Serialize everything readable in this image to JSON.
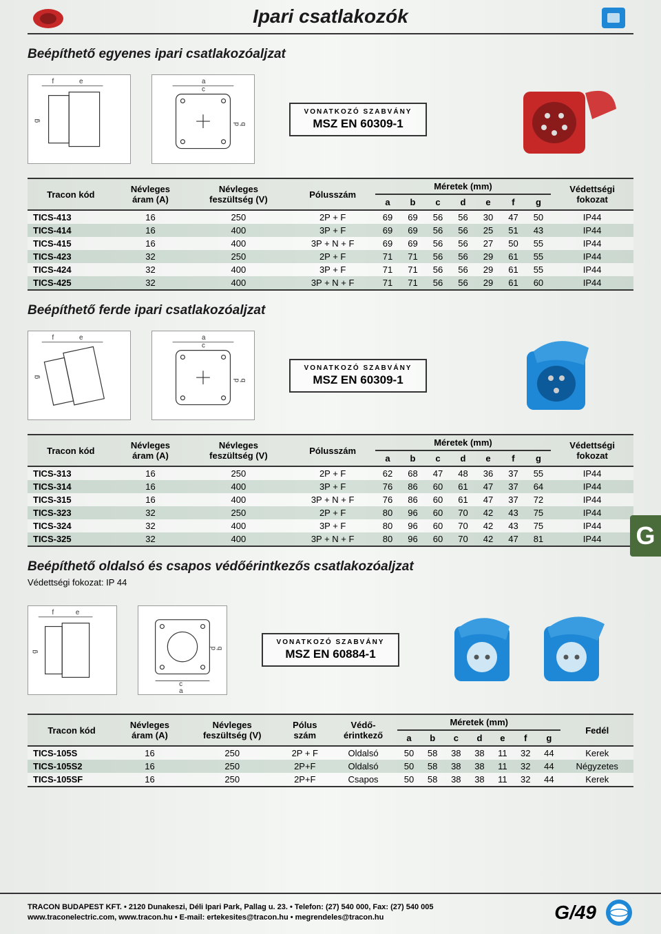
{
  "page_title": "Ipari csatlakozók",
  "standard_label": "VONATKOZÓ SZABVÁNY",
  "side_tab": "G",
  "footer": {
    "line1": "TRACON BUDAPEST KFT. • 2120 Dunakeszi, Déli Ipari Park, Pallag u. 23. • Telefon: (27) 540 000, Fax: (27) 540 005",
    "line2": "www.traconelectric.com, www.tracon.hu • E-mail: ertekesites@tracon.hu • megrendeles@tracon.hu",
    "page": "G/49"
  },
  "colors": {
    "accent": "#4a6b3a",
    "red": "#c62828",
    "blue": "#1e88d6",
    "row_stripe": "rgba(150,180,160,0.35)"
  },
  "section1": {
    "title": "Beépíthető egyenes ipari csatlakozóaljzat",
    "standard": "MSZ EN 60309-1",
    "product_color": "#c62828",
    "headers": {
      "code": "Tracon kód",
      "current_l1": "Névleges",
      "current_l2": "áram (A)",
      "voltage_l1": "Névleges",
      "voltage_l2": "feszültség (V)",
      "poles": "Pólusszám",
      "dims": "Méretek (mm)",
      "dim_cols": [
        "a",
        "b",
        "c",
        "d",
        "e",
        "f",
        "g"
      ],
      "ip_l1": "Védettségi",
      "ip_l2": "fokozat"
    },
    "rows": [
      {
        "code": "TICS-413",
        "cur": "16",
        "volt": "250",
        "pole": "2P + F",
        "a": "69",
        "b": "69",
        "c": "56",
        "d": "56",
        "e": "30",
        "f": "47",
        "g": "50",
        "ip": "IP44"
      },
      {
        "code": "TICS-414",
        "cur": "16",
        "volt": "400",
        "pole": "3P + F",
        "a": "69",
        "b": "69",
        "c": "56",
        "d": "56",
        "e": "25",
        "f": "51",
        "g": "43",
        "ip": "IP44"
      },
      {
        "code": "TICS-415",
        "cur": "16",
        "volt": "400",
        "pole": "3P + N + F",
        "a": "69",
        "b": "69",
        "c": "56",
        "d": "56",
        "e": "27",
        "f": "50",
        "g": "55",
        "ip": "IP44"
      },
      {
        "code": "TICS-423",
        "cur": "32",
        "volt": "250",
        "pole": "2P + F",
        "a": "71",
        "b": "71",
        "c": "56",
        "d": "56",
        "e": "29",
        "f": "61",
        "g": "55",
        "ip": "IP44"
      },
      {
        "code": "TICS-424",
        "cur": "32",
        "volt": "400",
        "pole": "3P + F",
        "a": "71",
        "b": "71",
        "c": "56",
        "d": "56",
        "e": "29",
        "f": "61",
        "g": "55",
        "ip": "IP44"
      },
      {
        "code": "TICS-425",
        "cur": "32",
        "volt": "400",
        "pole": "3P + N + F",
        "a": "71",
        "b": "71",
        "c": "56",
        "d": "56",
        "e": "29",
        "f": "61",
        "g": "60",
        "ip": "IP44"
      }
    ]
  },
  "section2": {
    "title": "Beépíthető ferde ipari csatlakozóaljzat",
    "standard": "MSZ EN 60309-1",
    "product_color": "#1e88d6",
    "headers": {
      "code": "Tracon kód",
      "current_l1": "Névleges",
      "current_l2": "áram (A)",
      "voltage_l1": "Névleges",
      "voltage_l2": "feszültség (V)",
      "poles": "Pólusszám",
      "dims": "Méretek (mm)",
      "dim_cols": [
        "a",
        "b",
        "c",
        "d",
        "e",
        "f",
        "g"
      ],
      "ip_l1": "Védettségi",
      "ip_l2": "fokozat"
    },
    "rows": [
      {
        "code": "TICS-313",
        "cur": "16",
        "volt": "250",
        "pole": "2P + F",
        "a": "62",
        "b": "68",
        "c": "47",
        "d": "48",
        "e": "36",
        "f": "37",
        "g": "55",
        "ip": "IP44"
      },
      {
        "code": "TICS-314",
        "cur": "16",
        "volt": "400",
        "pole": "3P + F",
        "a": "76",
        "b": "86",
        "c": "60",
        "d": "61",
        "e": "47",
        "f": "37",
        "g": "64",
        "ip": "IP44"
      },
      {
        "code": "TICS-315",
        "cur": "16",
        "volt": "400",
        "pole": "3P + N + F",
        "a": "76",
        "b": "86",
        "c": "60",
        "d": "61",
        "e": "47",
        "f": "37",
        "g": "72",
        "ip": "IP44"
      },
      {
        "code": "TICS-323",
        "cur": "32",
        "volt": "250",
        "pole": "2P + F",
        "a": "80",
        "b": "96",
        "c": "60",
        "d": "70",
        "e": "42",
        "f": "43",
        "g": "75",
        "ip": "IP44"
      },
      {
        "code": "TICS-324",
        "cur": "32",
        "volt": "400",
        "pole": "3P + F",
        "a": "80",
        "b": "96",
        "c": "60",
        "d": "70",
        "e": "42",
        "f": "43",
        "g": "75",
        "ip": "IP44"
      },
      {
        "code": "TICS-325",
        "cur": "32",
        "volt": "400",
        "pole": "3P + N + F",
        "a": "80",
        "b": "96",
        "c": "60",
        "d": "70",
        "e": "42",
        "f": "47",
        "g": "81",
        "ip": "IP44"
      }
    ]
  },
  "section3": {
    "title": "Beépíthető oldalsó és csapos védőérintkezős csatlakozóaljzat",
    "subtitle": "Védettségi fokozat: IP 44",
    "standard": "MSZ EN 60884-1",
    "product_color": "#1e88d6",
    "headers": {
      "code": "Tracon kód",
      "current_l1": "Névleges",
      "current_l2": "áram (A)",
      "voltage_l1": "Névleges",
      "voltage_l2": "feszültség (V)",
      "poles_l1": "Pólus",
      "poles_l2": "szám",
      "earth_l1": "Védő-",
      "earth_l2": "érintkező",
      "dims": "Méretek (mm)",
      "dim_cols": [
        "a",
        "b",
        "c",
        "d",
        "e",
        "f",
        "g"
      ],
      "cover": "Fedél"
    },
    "rows": [
      {
        "code": "TICS-105S",
        "cur": "16",
        "volt": "250",
        "pole": "2P + F",
        "earth": "Oldalsó",
        "a": "50",
        "b": "58",
        "c": "38",
        "d": "38",
        "e": "11",
        "f": "32",
        "g": "44",
        "cover": "Kerek"
      },
      {
        "code": "TICS-105S2",
        "cur": "16",
        "volt": "250",
        "pole": "2P+F",
        "earth": "Oldalsó",
        "a": "50",
        "b": "58",
        "c": "38",
        "d": "38",
        "e": "11",
        "f": "32",
        "g": "44",
        "cover": "Négyzetes"
      },
      {
        "code": "TICS-105SF",
        "cur": "16",
        "volt": "250",
        "pole": "2P+F",
        "earth": "Csapos",
        "a": "50",
        "b": "58",
        "c": "38",
        "d": "38",
        "e": "11",
        "f": "32",
        "g": "44",
        "cover": "Kerek"
      }
    ]
  }
}
